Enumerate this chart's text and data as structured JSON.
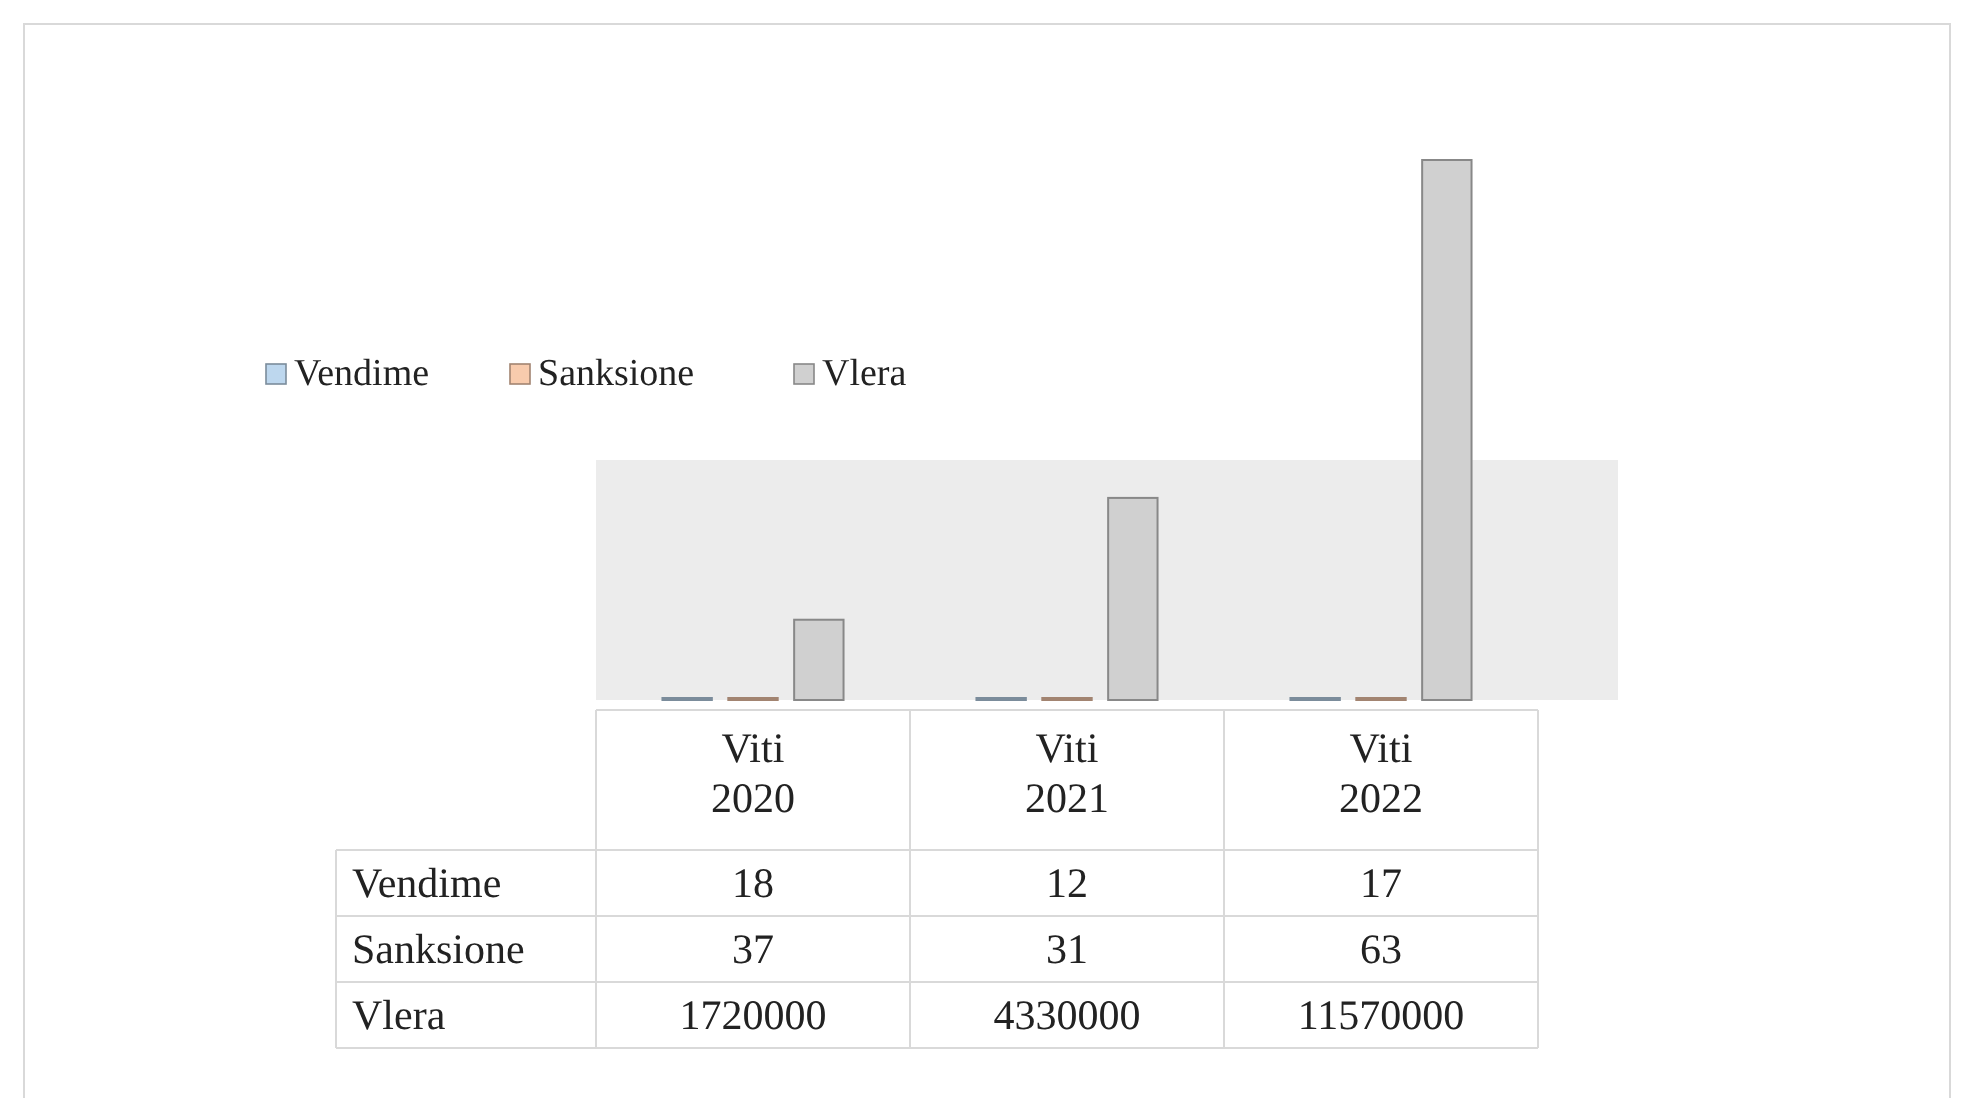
{
  "chart_data": {
    "type": "bar",
    "categories": [
      "Viti 2020",
      "Viti 2021",
      "Viti 2022"
    ],
    "series": [
      {
        "name": "Vendime",
        "color": "#bdd7ee",
        "values": [
          18,
          12,
          17
        ]
      },
      {
        "name": "Sanksione",
        "color": "#f8cbad",
        "values": [
          37,
          31,
          63
        ]
      },
      {
        "name": "Vlera",
        "color": "#d0d0d0",
        "values": [
          1720000,
          4330000,
          11570000
        ]
      }
    ],
    "legend": "left",
    "data_labels": true
  }
}
